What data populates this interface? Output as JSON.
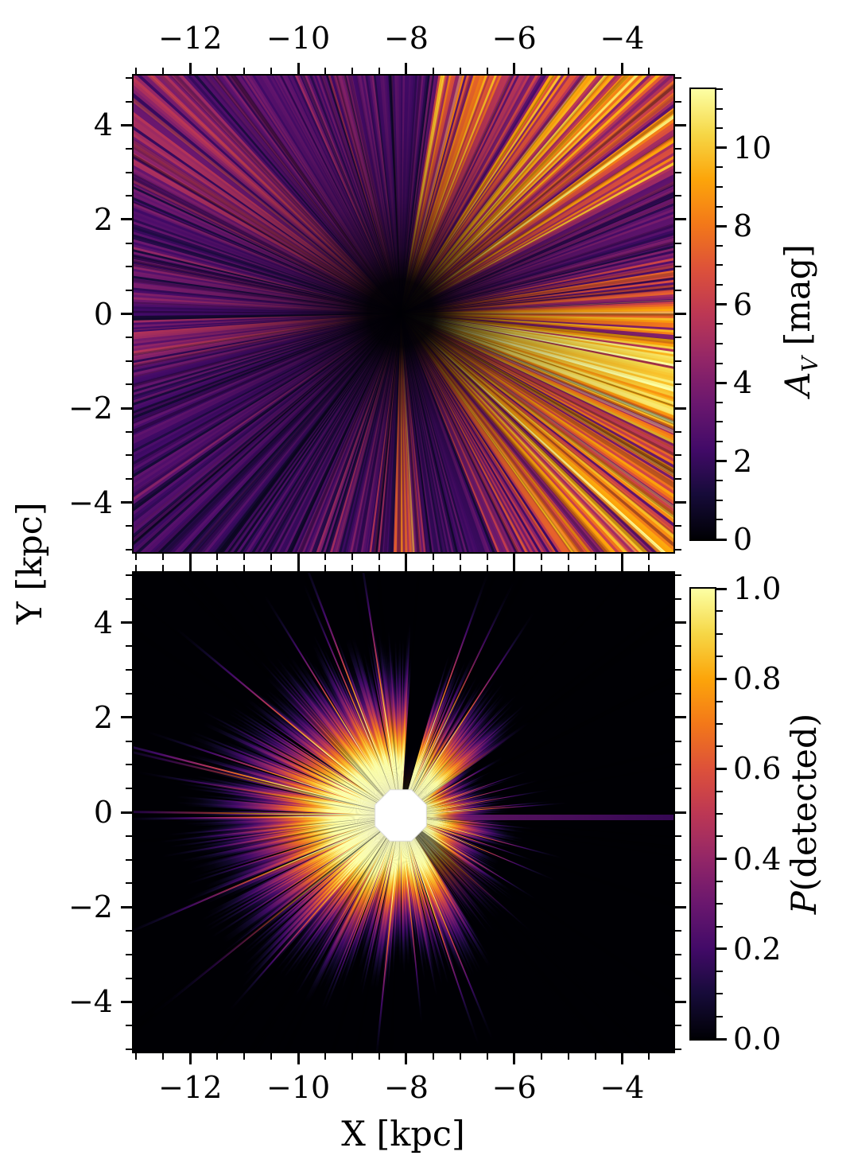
{
  "figure": {
    "background": "#ffffff",
    "description": "Two-panel heliocentric Galactic maps sharing X axis: top panel dust extinction A_V, bottom panel detection probability, both with inferno colormaps"
  },
  "axes": {
    "x": {
      "label": "X [kpc]",
      "range": [
        -13.05,
        -3.05
      ],
      "major_ticks": [
        -12,
        -10,
        -8,
        -6,
        -4
      ],
      "major_labels": [
        "−12",
        "−10",
        "−8",
        "−6",
        "−4"
      ],
      "minor_step": 0.5
    },
    "y": {
      "label": "Y [kpc]",
      "range": [
        -5.05,
        5.05
      ],
      "major_ticks": [
        4,
        2,
        0,
        -2,
        -4
      ],
      "major_labels": [
        "4",
        "2",
        "0",
        "−2",
        "−4"
      ],
      "minor_step": 0.5
    }
  },
  "chart_data": [
    {
      "type": "heatmap",
      "name": "dust extinction map",
      "xlabel": "X [kpc]",
      "ylabel": "Y [kpc]",
      "x_range": [
        -13.05,
        -3.05
      ],
      "y_range": [
        -5.05,
        5.05
      ],
      "colormap": "inferno",
      "colorbar": {
        "label_italic": "A",
        "label_sub": "V",
        "label_rest": " [mag]",
        "range": [
          0,
          11.5
        ],
        "major_ticks": [
          0,
          2,
          4,
          6,
          8,
          10
        ],
        "major_labels": [
          "0",
          "2",
          "4",
          "6",
          "8",
          "10"
        ],
        "minor_step": 0.5
      },
      "observer_kpc": [
        -8.1,
        0.0
      ],
      "structure": "radial rays of cumulative extinction emanating from the observer; A_V near 0 at the observer, brightest sectors (A_V over 10) toward +X galactic-centre side",
      "sector_format": [
        "azimuth_start_deg",
        "azimuth_end_deg",
        "mean_AV_mag",
        "AV_scatter_mag"
      ],
      "azimuth_sectors": [
        [
          -92,
          -84,
          6.3,
          1.5
        ],
        [
          -84,
          -68,
          2.4,
          0.9
        ],
        [
          -68,
          -56,
          5.2,
          1.8
        ],
        [
          -56,
          -24,
          7.8,
          2.2
        ],
        [
          -24,
          -16,
          9.3,
          1.4
        ],
        [
          -16,
          -7,
          10.2,
          1.0
        ],
        [
          -7,
          2,
          8.6,
          1.4
        ],
        [
          2,
          12,
          5.8,
          1.6
        ],
        [
          12,
          27,
          3.1,
          1.1
        ],
        [
          27,
          44,
          6.8,
          2.0
        ],
        [
          44,
          58,
          8.8,
          2.0
        ],
        [
          58,
          67,
          4.2,
          1.6
        ],
        [
          67,
          81,
          7.7,
          2.2
        ],
        [
          81,
          96,
          2.6,
          0.8
        ],
        [
          96,
          112,
          3.3,
          1.0
        ],
        [
          112,
          131,
          3.0,
          0.9
        ],
        [
          131,
          152,
          4.3,
          1.3
        ],
        [
          152,
          184,
          2.9,
          1.0
        ],
        [
          184,
          193,
          4.4,
          1.2
        ],
        [
          193,
          216,
          2.6,
          0.8
        ],
        [
          216,
          246,
          2.2,
          0.8
        ],
        [
          246,
          262,
          2.9,
          1.1
        ],
        [
          262,
          268,
          3.2,
          1.2
        ]
      ]
    },
    {
      "type": "heatmap",
      "name": "detection probability map",
      "xlabel": "X [kpc]",
      "ylabel": "Y [kpc]",
      "x_range": [
        -13.05,
        -3.05
      ],
      "y_range": [
        -5.05,
        5.05
      ],
      "colormap": "inferno",
      "colorbar": {
        "label_italic": "P",
        "label_sub": "",
        "label_rest": "(detected)",
        "range": [
          0,
          1
        ],
        "major_ticks": [
          0,
          0.2,
          0.4,
          0.6,
          0.8,
          1
        ],
        "major_labels": [
          "0.0",
          "0.2",
          "0.4",
          "0.6",
          "0.8",
          "1.0"
        ],
        "minor_step": 0.05
      },
      "observer_kpc": [
        -8.1,
        0.0
      ],
      "masked_core": "white octagon of radius ~0.55 kpc at the observer",
      "max_radius_kpc": 3.6,
      "radial_profile": {
        "radius_fraction": [
          0,
          0.33,
          0.42,
          0.5,
          0.58,
          0.66,
          0.75,
          0.85,
          0.93,
          1
        ],
        "p_detected": [
          1,
          1,
          0.85,
          0.68,
          0.5,
          0.35,
          0.2,
          0.08,
          0.02,
          0
        ]
      },
      "structure": "bright plateau P~1 around observer fading radially to 0; asymmetric reach, farthest toward -X (left), truncated toward +X",
      "sector_format": [
        "azimuth_start_deg",
        "azimuth_end_deg",
        "reach_factor"
      ],
      "azimuth_sectors": [
        [
          -5,
          12,
          0.62
        ],
        [
          12,
          35,
          0.52
        ],
        [
          35,
          62,
          0.88
        ],
        [
          62,
          74,
          0.95
        ],
        [
          74,
          86,
          0.42
        ],
        [
          86,
          102,
          1.0
        ],
        [
          102,
          128,
          1.05
        ],
        [
          128,
          152,
          1.12
        ],
        [
          152,
          178,
          1.22
        ],
        [
          178,
          205,
          1.28
        ],
        [
          205,
          228,
          1.22
        ],
        [
          228,
          252,
          1.1
        ],
        [
          252,
          266,
          0.98
        ],
        [
          266,
          278,
          0.85
        ],
        [
          278,
          302,
          0.98
        ],
        [
          302,
          326,
          0.8
        ],
        [
          326,
          345,
          0.62
        ],
        [
          345,
          355,
          0.72
        ]
      ],
      "features": [
        "dark shadow wedge toward azimuth 74-86 deg",
        "thin low-P streak along Y~0 extending to right edge",
        "darker wedge toward lower right"
      ]
    }
  ]
}
